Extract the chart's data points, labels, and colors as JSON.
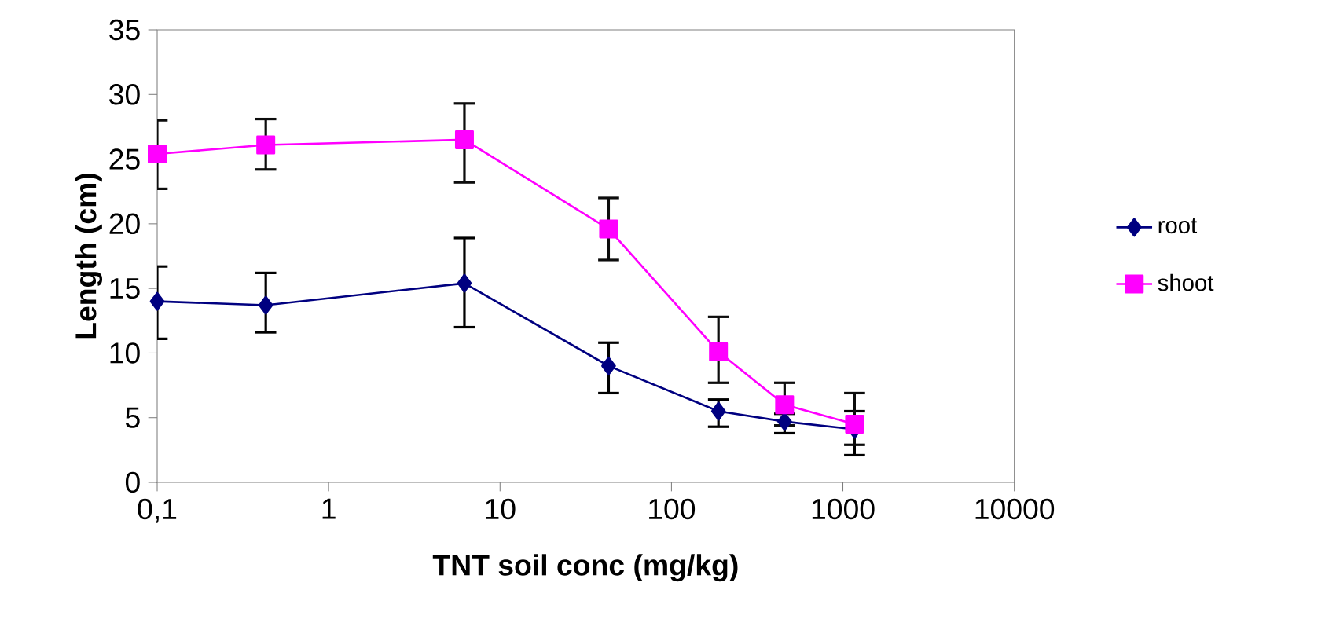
{
  "chart_data": {
    "type": "line",
    "xlabel": "TNT soil conc (mg/kg)",
    "ylabel": "Length (cm)",
    "x": [
      0.1,
      0.43,
      6.2,
      43,
      188,
      457,
      1170
    ],
    "series": [
      {
        "name": "root",
        "color": "#000080",
        "marker": "diamond",
        "values": [
          14.0,
          13.7,
          15.4,
          9.0,
          5.5,
          4.7,
          4.1
        ],
        "errors": [
          [
            11.1,
            16.7
          ],
          [
            11.6,
            16.2
          ],
          [
            12.0,
            18.9
          ],
          [
            6.9,
            10.8
          ],
          [
            4.3,
            6.4
          ],
          [
            3.8,
            5.3
          ],
          [
            2.1,
            5.5
          ]
        ]
      },
      {
        "name": "shoot",
        "color": "#ff00ff",
        "marker": "square",
        "values": [
          25.4,
          26.1,
          26.5,
          19.6,
          10.1,
          6.0,
          4.5
        ],
        "errors": [
          [
            22.7,
            28.0
          ],
          [
            24.2,
            28.1
          ],
          [
            23.2,
            29.3
          ],
          [
            17.2,
            22.0
          ],
          [
            7.7,
            12.8
          ],
          [
            4.4,
            7.7
          ],
          [
            2.9,
            6.9
          ]
        ]
      }
    ],
    "log": "x",
    "xlim": [
      0.1,
      10000
    ],
    "ylim": [
      0,
      35
    ],
    "xticks": [
      {
        "value": 0.1,
        "label": "0,1"
      },
      1,
      10,
      100,
      1000,
      10000
    ],
    "yticks": [
      0,
      5,
      10,
      15,
      20,
      25,
      30,
      35
    ],
    "grid": false,
    "legend": "right",
    "line_style": "solid"
  }
}
